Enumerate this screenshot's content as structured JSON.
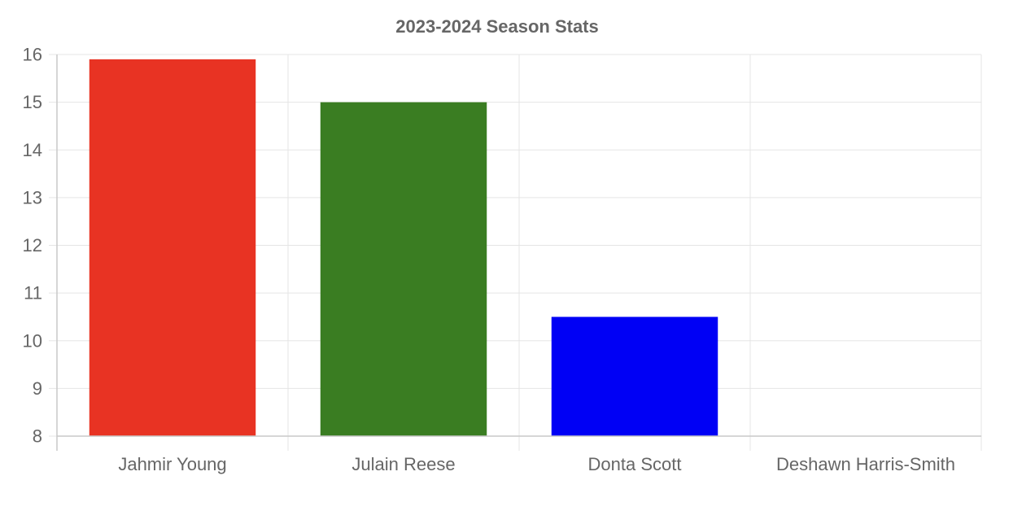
{
  "chart_data": {
    "type": "bar",
    "title": "2023-2024 Season Stats",
    "xlabel": "",
    "ylabel": "",
    "categories": [
      "Jahmir Young",
      "Julain Reese",
      "Donta Scott",
      "Deshawn Harris-Smith"
    ],
    "values": [
      15.9,
      15.0,
      10.5,
      8.0
    ],
    "bar_colors": [
      "#e83323",
      "#3a7d22",
      "#0000f5",
      "#ffffff"
    ],
    "ylim": [
      8,
      16
    ],
    "yticks": [
      "8",
      "9",
      "10",
      "11",
      "12",
      "13",
      "14",
      "15",
      "16"
    ],
    "grid": true,
    "legend": "none"
  },
  "colors": {
    "grid": "#e5e5e5",
    "axis": "#c9c9c9",
    "text": "#666666"
  }
}
